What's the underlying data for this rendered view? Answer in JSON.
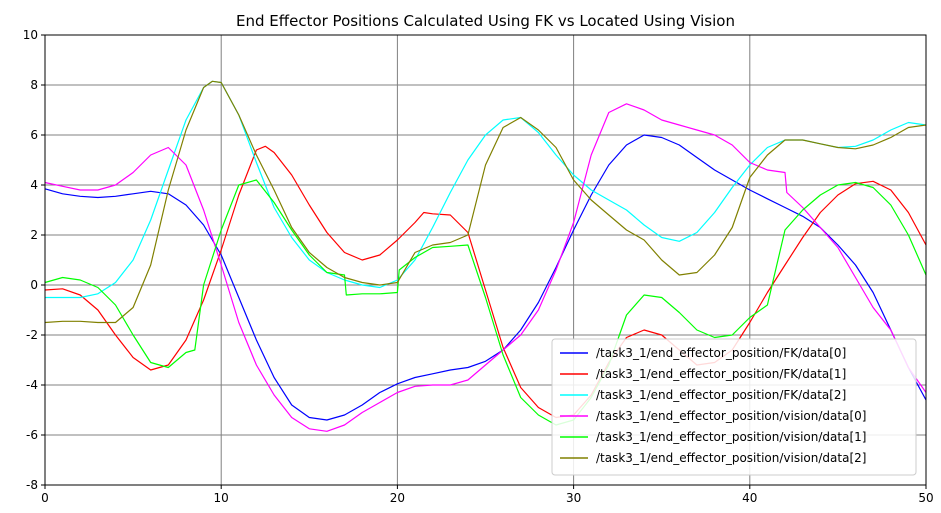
{
  "chart_data": {
    "type": "line",
    "title": "End Effector Positions Calculated Using FK vs Located Using Vision",
    "xlabel": "",
    "ylabel": "",
    "xlim": [
      0,
      50
    ],
    "ylim": [
      -8,
      10
    ],
    "x_ticks": [
      0,
      10,
      20,
      30,
      40,
      50
    ],
    "y_ticks": [
      -8,
      -6,
      -4,
      -2,
      0,
      2,
      4,
      6,
      8,
      10
    ],
    "grid": true,
    "legend_position": "lower-right",
    "series": [
      {
        "name": "/task3_1/end_effector_position/FK/data[0]",
        "color": "#0000ff",
        "points": [
          [
            0,
            3.85
          ],
          [
            1,
            3.65
          ],
          [
            2,
            3.55
          ],
          [
            3,
            3.5
          ],
          [
            4,
            3.55
          ],
          [
            5,
            3.65
          ],
          [
            6,
            3.75
          ],
          [
            7,
            3.65
          ],
          [
            8,
            3.2
          ],
          [
            9,
            2.4
          ],
          [
            10,
            1.2
          ],
          [
            11,
            -0.5
          ],
          [
            12,
            -2.2
          ],
          [
            13,
            -3.7
          ],
          [
            14,
            -4.8
          ],
          [
            15,
            -5.3
          ],
          [
            16,
            -5.4
          ],
          [
            17,
            -5.2
          ],
          [
            18,
            -4.8
          ],
          [
            19,
            -4.3
          ],
          [
            20,
            -3.95
          ],
          [
            21,
            -3.7
          ],
          [
            22,
            -3.55
          ],
          [
            23,
            -3.4
          ],
          [
            24,
            -3.3
          ],
          [
            25,
            -3.05
          ],
          [
            26,
            -2.6
          ],
          [
            27,
            -1.8
          ],
          [
            28,
            -0.7
          ],
          [
            29,
            0.7
          ],
          [
            30,
            2.2
          ],
          [
            31,
            3.6
          ],
          [
            32,
            4.8
          ],
          [
            33,
            5.6
          ],
          [
            34,
            6.0
          ],
          [
            35,
            5.9
          ],
          [
            36,
            5.6
          ],
          [
            37,
            5.1
          ],
          [
            38,
            4.6
          ],
          [
            39,
            4.2
          ],
          [
            40,
            3.8
          ],
          [
            41,
            3.45
          ],
          [
            42,
            3.1
          ],
          [
            43,
            2.75
          ],
          [
            44,
            2.3
          ],
          [
            45,
            1.6
          ],
          [
            46,
            0.8
          ],
          [
            47,
            -0.3
          ],
          [
            48,
            -1.8
          ],
          [
            49,
            -3.3
          ],
          [
            50,
            -4.6
          ]
        ]
      },
      {
        "name": "/task3_1/end_effector_position/FK/data[1]",
        "color": "#ff0000",
        "points": [
          [
            0,
            -0.2
          ],
          [
            1,
            -0.15
          ],
          [
            2,
            -0.4
          ],
          [
            3,
            -1.0
          ],
          [
            4,
            -2.0
          ],
          [
            5,
            -2.9
          ],
          [
            6,
            -3.4
          ],
          [
            7,
            -3.2
          ],
          [
            8,
            -2.2
          ],
          [
            9,
            -0.6
          ],
          [
            10,
            1.4
          ],
          [
            11,
            3.6
          ],
          [
            12,
            5.4
          ],
          [
            12.5,
            5.55
          ],
          [
            13,
            5.3
          ],
          [
            14,
            4.4
          ],
          [
            15,
            3.2
          ],
          [
            16,
            2.1
          ],
          [
            17,
            1.3
          ],
          [
            18,
            1.0
          ],
          [
            19,
            1.2
          ],
          [
            20,
            1.8
          ],
          [
            21,
            2.5
          ],
          [
            21.5,
            2.9
          ],
          [
            22,
            2.85
          ],
          [
            23,
            2.8
          ],
          [
            24,
            2.1
          ],
          [
            25,
            -0.2
          ],
          [
            26,
            -2.5
          ],
          [
            27,
            -4.1
          ],
          [
            28,
            -4.9
          ],
          [
            29,
            -5.3
          ],
          [
            30,
            -5.2
          ],
          [
            31,
            -4.4
          ],
          [
            32,
            -3.1
          ],
          [
            33,
            -2.1
          ],
          [
            34,
            -1.8
          ],
          [
            35,
            -2.0
          ],
          [
            36,
            -2.6
          ],
          [
            37,
            -3.2
          ],
          [
            38,
            -3.1
          ],
          [
            39,
            -2.6
          ],
          [
            40,
            -1.5
          ],
          [
            41,
            -0.3
          ],
          [
            42,
            0.8
          ],
          [
            43,
            1.9
          ],
          [
            44,
            2.9
          ],
          [
            45,
            3.6
          ],
          [
            46,
            4.05
          ],
          [
            47,
            4.15
          ],
          [
            48,
            3.8
          ],
          [
            49,
            2.9
          ],
          [
            50,
            1.6
          ]
        ]
      },
      {
        "name": "/task3_1/end_effector_position/FK/data[2]",
        "color": "#00ffff",
        "points": [
          [
            0,
            -0.5
          ],
          [
            1,
            -0.5
          ],
          [
            2,
            -0.5
          ],
          [
            3,
            -0.35
          ],
          [
            4,
            0.1
          ],
          [
            5,
            1.0
          ],
          [
            6,
            2.6
          ],
          [
            7,
            4.6
          ],
          [
            8,
            6.6
          ],
          [
            9,
            7.9
          ],
          [
            9.5,
            8.15
          ],
          [
            10,
            8.1
          ],
          [
            11,
            6.8
          ],
          [
            12,
            4.9
          ],
          [
            13,
            3.1
          ],
          [
            14,
            1.9
          ],
          [
            15,
            1.0
          ],
          [
            16,
            0.5
          ],
          [
            17,
            0.2
          ],
          [
            18,
            0.0
          ],
          [
            19,
            -0.1
          ],
          [
            20,
            0.2
          ],
          [
            21,
            1.0
          ],
          [
            22,
            2.3
          ],
          [
            23,
            3.7
          ],
          [
            24,
            5.0
          ],
          [
            25,
            6.0
          ],
          [
            26,
            6.6
          ],
          [
            27,
            6.7
          ],
          [
            28,
            6.1
          ],
          [
            29,
            5.2
          ],
          [
            30,
            4.4
          ],
          [
            31,
            3.8
          ],
          [
            32,
            3.4
          ],
          [
            33,
            3.0
          ],
          [
            34,
            2.4
          ],
          [
            35,
            1.9
          ],
          [
            36,
            1.75
          ],
          [
            37,
            2.1
          ],
          [
            38,
            2.9
          ],
          [
            39,
            3.9
          ],
          [
            40,
            4.8
          ],
          [
            41,
            5.5
          ],
          [
            42,
            5.8
          ],
          [
            43,
            5.8
          ],
          [
            44,
            5.65
          ],
          [
            45,
            5.5
          ],
          [
            46,
            5.55
          ],
          [
            47,
            5.8
          ],
          [
            48,
            6.2
          ],
          [
            49,
            6.5
          ],
          [
            50,
            6.4
          ]
        ]
      },
      {
        "name": "/task3_1/end_effector_position/vision/data[0]",
        "color": "#ff00ff",
        "points": [
          [
            0,
            4.1
          ],
          [
            1,
            3.95
          ],
          [
            2,
            3.8
          ],
          [
            3,
            3.8
          ],
          [
            4,
            4.0
          ],
          [
            5,
            4.5
          ],
          [
            6,
            5.2
          ],
          [
            7,
            5.5
          ],
          [
            8,
            4.8
          ],
          [
            9,
            3.0
          ],
          [
            10,
            0.8
          ],
          [
            11,
            -1.5
          ],
          [
            12,
            -3.2
          ],
          [
            13,
            -4.4
          ],
          [
            14,
            -5.3
          ],
          [
            15,
            -5.75
          ],
          [
            16,
            -5.85
          ],
          [
            17,
            -5.6
          ],
          [
            18,
            -5.1
          ],
          [
            19,
            -4.7
          ],
          [
            20,
            -4.3
          ],
          [
            21,
            -4.05
          ],
          [
            22,
            -4.0
          ],
          [
            23,
            -4.0
          ],
          [
            24,
            -3.8
          ],
          [
            25,
            -3.2
          ],
          [
            26,
            -2.6
          ],
          [
            27,
            -2.0
          ],
          [
            28,
            -1.0
          ],
          [
            29,
            0.6
          ],
          [
            30,
            2.5
          ],
          [
            31,
            5.2
          ],
          [
            32,
            6.9
          ],
          [
            33,
            7.25
          ],
          [
            34,
            7.0
          ],
          [
            35,
            6.6
          ],
          [
            36,
            6.4
          ],
          [
            37,
            6.2
          ],
          [
            38,
            6.0
          ],
          [
            39,
            5.6
          ],
          [
            40,
            4.9
          ],
          [
            41,
            4.6
          ],
          [
            42,
            4.5
          ],
          [
            42.1,
            3.7
          ],
          [
            43,
            3.1
          ],
          [
            44,
            2.3
          ],
          [
            45,
            1.5
          ],
          [
            46,
            0.3
          ],
          [
            47,
            -0.9
          ],
          [
            48,
            -1.8
          ],
          [
            49,
            -3.3
          ],
          [
            50,
            -4.3
          ]
        ]
      },
      {
        "name": "/task3_1/end_effector_position/vision/data[1]",
        "color": "#00ff00",
        "points": [
          [
            0,
            0.1
          ],
          [
            1,
            0.3
          ],
          [
            2,
            0.2
          ],
          [
            3,
            -0.1
          ],
          [
            4,
            -0.8
          ],
          [
            5,
            -2.0
          ],
          [
            6,
            -3.1
          ],
          [
            7,
            -3.3
          ],
          [
            8,
            -2.7
          ],
          [
            8.5,
            -2.6
          ],
          [
            9,
            0.0
          ],
          [
            10,
            2.2
          ],
          [
            11,
            4.0
          ],
          [
            12,
            4.2
          ],
          [
            13,
            3.3
          ],
          [
            14,
            2.2
          ],
          [
            15,
            1.2
          ],
          [
            16,
            0.5
          ],
          [
            17,
            0.4
          ],
          [
            17.1,
            -0.4
          ],
          [
            18,
            -0.35
          ],
          [
            19,
            -0.35
          ],
          [
            20,
            -0.3
          ],
          [
            20.1,
            0.6
          ],
          [
            21,
            1.1
          ],
          [
            22,
            1.5
          ],
          [
            23,
            1.55
          ],
          [
            24,
            1.6
          ],
          [
            25,
            -0.5
          ],
          [
            26,
            -2.8
          ],
          [
            27,
            -4.5
          ],
          [
            28,
            -5.2
          ],
          [
            29,
            -5.6
          ],
          [
            30,
            -5.4
          ],
          [
            31,
            -4.5
          ],
          [
            32,
            -3.2
          ],
          [
            33,
            -1.2
          ],
          [
            34,
            -0.4
          ],
          [
            35,
            -0.5
          ],
          [
            36,
            -1.1
          ],
          [
            37,
            -1.8
          ],
          [
            38,
            -2.1
          ],
          [
            39,
            -2.0
          ],
          [
            40,
            -1.3
          ],
          [
            41,
            -0.8
          ],
          [
            42,
            2.2
          ],
          [
            43,
            3.0
          ],
          [
            44,
            3.6
          ],
          [
            45,
            4.0
          ],
          [
            46,
            4.1
          ],
          [
            47,
            3.9
          ],
          [
            48,
            3.2
          ],
          [
            49,
            2.0
          ],
          [
            50,
            0.4
          ]
        ]
      },
      {
        "name": "/task3_1/end_effector_position/vision/data[2]",
        "color": "#808000",
        "points": [
          [
            0,
            -1.5
          ],
          [
            1,
            -1.45
          ],
          [
            2,
            -1.45
          ],
          [
            3,
            -1.5
          ],
          [
            4,
            -1.5
          ],
          [
            5,
            -0.9
          ],
          [
            6,
            0.8
          ],
          [
            7,
            3.8
          ],
          [
            8,
            6.2
          ],
          [
            9,
            7.9
          ],
          [
            9.5,
            8.15
          ],
          [
            10,
            8.1
          ],
          [
            11,
            6.8
          ],
          [
            12,
            5.2
          ],
          [
            13,
            3.8
          ],
          [
            14,
            2.3
          ],
          [
            15,
            1.3
          ],
          [
            16,
            0.7
          ],
          [
            17,
            0.3
          ],
          [
            18,
            0.1
          ],
          [
            19,
            0.0
          ],
          [
            20,
            0.1
          ],
          [
            21,
            1.3
          ],
          [
            22,
            1.6
          ],
          [
            23,
            1.7
          ],
          [
            24,
            2.0
          ],
          [
            25,
            4.8
          ],
          [
            26,
            6.3
          ],
          [
            27,
            6.7
          ],
          [
            28,
            6.2
          ],
          [
            29,
            5.5
          ],
          [
            30,
            4.2
          ],
          [
            31,
            3.4
          ],
          [
            32,
            2.8
          ],
          [
            33,
            2.2
          ],
          [
            34,
            1.8
          ],
          [
            35,
            1.0
          ],
          [
            36,
            0.4
          ],
          [
            37,
            0.5
          ],
          [
            38,
            1.2
          ],
          [
            39,
            2.3
          ],
          [
            40,
            4.3
          ],
          [
            41,
            5.2
          ],
          [
            42,
            5.8
          ],
          [
            43,
            5.8
          ],
          [
            44,
            5.65
          ],
          [
            45,
            5.5
          ],
          [
            46,
            5.45
          ],
          [
            47,
            5.6
          ],
          [
            48,
            5.9
          ],
          [
            49,
            6.3
          ],
          [
            50,
            6.4
          ]
        ]
      }
    ]
  }
}
